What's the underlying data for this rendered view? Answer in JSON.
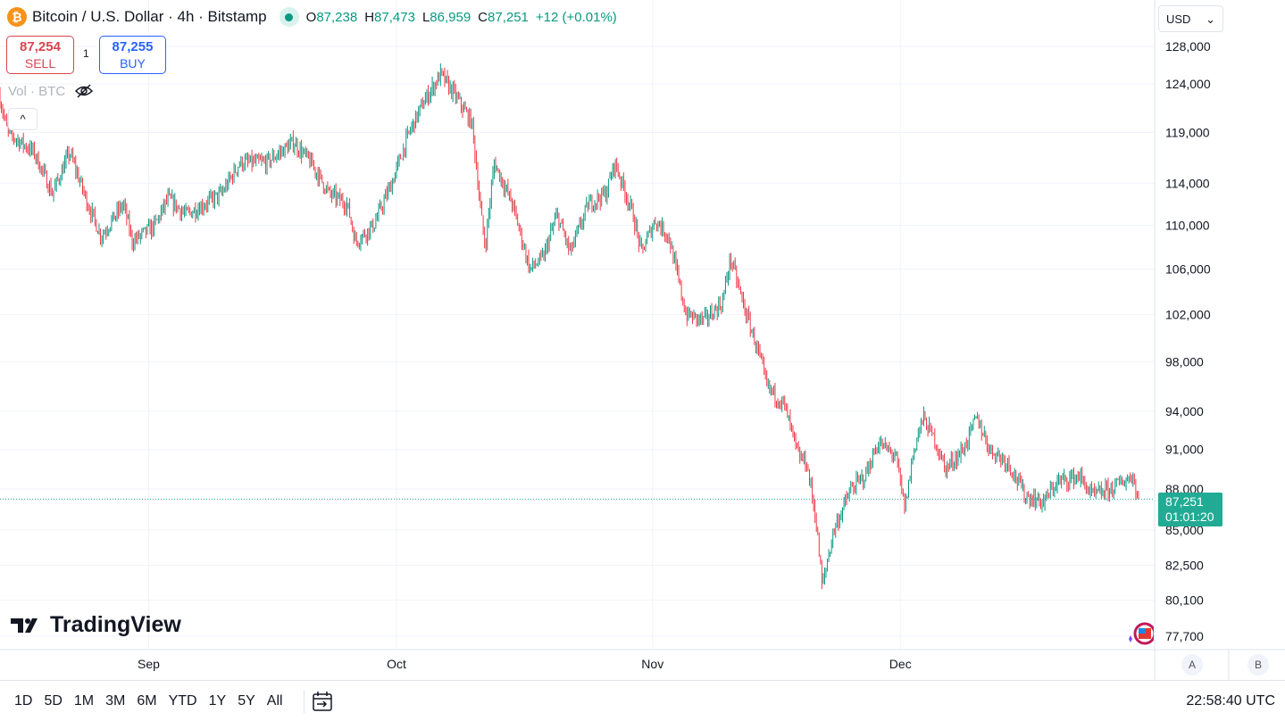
{
  "header": {
    "symbol_title": "Bitcoin / U.S. Dollar · 4h · Bitstamp",
    "symbol_icon": "bitcoin-icon",
    "ohlc": {
      "o_label": "O",
      "o": "87,238",
      "h_label": "H",
      "h": "87,473",
      "l_label": "L",
      "l": "86,959",
      "c_label": "C",
      "c": "87,251",
      "change": "+12 (+0.01%)"
    }
  },
  "trade": {
    "sell_price": "87,254",
    "sell_label": "SELL",
    "qty": "1",
    "buy_price": "87,255",
    "buy_label": "BUY"
  },
  "volume_label": "Vol · BTC",
  "collapse_icon": "^",
  "currency": "USD",
  "logo": "TradingView",
  "price_label": {
    "price": "87,251",
    "countdown": "01:01:20"
  },
  "scale_buttons": {
    "a": "A",
    "b": "B"
  },
  "ranges": [
    "1D",
    "5D",
    "1M",
    "3M",
    "6M",
    "YTD",
    "1Y",
    "5Y",
    "All"
  ],
  "clock": "22:58:40 UTC",
  "colors": {
    "up": "#089981",
    "down": "#f23645",
    "price_tag": "#22ab94"
  },
  "chart_data": {
    "type": "candlestick",
    "scale": "log",
    "interval": "4h",
    "current_price": 87251,
    "y_ticks": [
      128000,
      124000,
      119000,
      114000,
      110000,
      106000,
      102000,
      98000,
      94000,
      91000,
      88000,
      85000,
      82500,
      80100,
      77700
    ],
    "y_tick_labels": [
      "128,000",
      "124,000",
      "119,000",
      "114,000",
      "110,000",
      "106,000",
      "102,000",
      "98,000",
      "94,000",
      "91,000",
      "88,000",
      "85,000",
      "82,500",
      "80,100",
      "77,700"
    ],
    "x_ticks": [
      {
        "label": "Sep",
        "day": 18
      },
      {
        "label": "Oct",
        "day": 48
      },
      {
        "label": "Nov",
        "day": 79
      },
      {
        "label": "Dec",
        "day": 109
      }
    ],
    "x_unit": "day",
    "path": [
      [
        0,
        123000
      ],
      [
        1.1,
        119000
      ],
      [
        4.3,
        117000
      ],
      [
        6.5,
        113000
      ],
      [
        8.6,
        117000
      ],
      [
        10.8,
        112000
      ],
      [
        12.4,
        109000
      ],
      [
        15.1,
        112000
      ],
      [
        16.2,
        108500
      ],
      [
        18.9,
        110000
      ],
      [
        20.5,
        112500
      ],
      [
        22.7,
        111000
      ],
      [
        24.9,
        112000
      ],
      [
        27,
        113000
      ],
      [
        29.2,
        116000
      ],
      [
        32.4,
        116000
      ],
      [
        35.7,
        118000
      ],
      [
        37.8,
        116000
      ],
      [
        40,
        113000
      ],
      [
        42.2,
        112000
      ],
      [
        43.2,
        108500
      ],
      [
        45.4,
        110000
      ],
      [
        47.6,
        114000
      ],
      [
        49.7,
        119000
      ],
      [
        51.4,
        122000
      ],
      [
        53.5,
        125000
      ],
      [
        55.1,
        123000
      ],
      [
        57.3,
        120000
      ],
      [
        58.4,
        111000
      ],
      [
        58.9,
        108000
      ],
      [
        60,
        116000
      ],
      [
        62.2,
        112000
      ],
      [
        64.3,
        106000
      ],
      [
        65.9,
        107000
      ],
      [
        67.6,
        111000
      ],
      [
        69.2,
        107500
      ],
      [
        71.4,
        112000
      ],
      [
        73.5,
        113000
      ],
      [
        74.6,
        116000
      ],
      [
        76.8,
        111000
      ],
      [
        77.8,
        107500
      ],
      [
        79.5,
        110500
      ],
      [
        81.1,
        109000
      ],
      [
        83.2,
        102000
      ],
      [
        85.4,
        101500
      ],
      [
        87.6,
        103000
      ],
      [
        88.6,
        107000
      ],
      [
        90.3,
        102500
      ],
      [
        91.9,
        99000
      ],
      [
        93,
        96000
      ],
      [
        95.1,
        94500
      ],
      [
        96.8,
        90500
      ],
      [
        97.8,
        90000
      ],
      [
        98.9,
        86000
      ],
      [
        99.7,
        81000
      ],
      [
        101.1,
        85000
      ],
      [
        103.2,
        88000
      ],
      [
        104.9,
        89000
      ],
      [
        106.5,
        91500
      ],
      [
        108.6,
        90500
      ],
      [
        109.7,
        86500
      ],
      [
        110.8,
        91000
      ],
      [
        111.9,
        93500
      ],
      [
        113.5,
        91500
      ],
      [
        114.6,
        89500
      ],
      [
        116.8,
        91000
      ],
      [
        118.4,
        93500
      ],
      [
        120,
        91000
      ],
      [
        122.2,
        90000
      ],
      [
        124.3,
        87500
      ],
      [
        126.5,
        87000
      ],
      [
        128.1,
        88500
      ],
      [
        130.8,
        89000
      ],
      [
        132.4,
        87500
      ],
      [
        134.6,
        88000
      ],
      [
        137.3,
        89000
      ],
      [
        138,
        87251
      ]
    ]
  }
}
